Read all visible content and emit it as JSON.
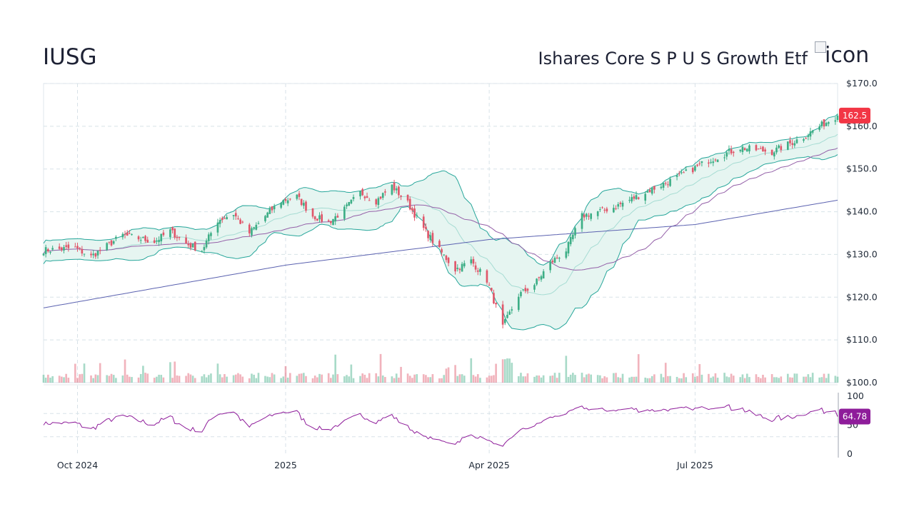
{
  "header": {
    "ticker": "IUSG",
    "name": "Ishares Core S P U S Growth Etf",
    "logo_alt": "icon"
  },
  "colors": {
    "up": "#3dae86",
    "down": "#e0566a",
    "band_fill": "#e6f5f1",
    "band_line": "#26a69a",
    "ma_mid": "#a6dcd3",
    "ma50": "#9460a8",
    "ma200": "#5b62b0",
    "rsi": "#8e1c9a",
    "price_badge": "#f23645",
    "rsi_badge": "#8e1c9a"
  },
  "chart_data": [
    {
      "type": "candlestick",
      "title": "",
      "x_range": [
        "2024-09-16",
        "2025-09-02"
      ],
      "x_tick_labels": [
        "Oct 2024",
        "2025",
        "Apr 2025",
        "Jul 2025"
      ],
      "y_tick_labels": [
        "$170.0",
        "$160.0",
        "$150.0",
        "$140.0",
        "$130.0",
        "$120.0",
        "$110.0",
        "$100.0"
      ],
      "ylim": [
        100,
        170
      ],
      "grid": true,
      "last_price": "162.5",
      "overlays": [
        "Bollinger Bands (20)",
        "MA 50",
        "MA 200"
      ],
      "close_keypoints": [
        {
          "date": "2024-09-16",
          "close": 131.0
        },
        {
          "date": "2024-09-30",
          "close": 131.5
        },
        {
          "date": "2024-10-07",
          "close": 129.5
        },
        {
          "date": "2024-10-21",
          "close": 134.5
        },
        {
          "date": "2024-11-04",
          "close": 133.0
        },
        {
          "date": "2024-11-11",
          "close": 135.5
        },
        {
          "date": "2024-11-18",
          "close": 132.5
        },
        {
          "date": "2024-11-25",
          "close": 131.0
        },
        {
          "date": "2024-12-02",
          "close": 138.0
        },
        {
          "date": "2024-12-09",
          "close": 139.5
        },
        {
          "date": "2024-12-16",
          "close": 135.0
        },
        {
          "date": "2024-12-23",
          "close": 139.0
        },
        {
          "date": "2024-12-30",
          "close": 142.5
        },
        {
          "date": "2025-01-06",
          "close": 143.5
        },
        {
          "date": "2025-01-13",
          "close": 139.0
        },
        {
          "date": "2025-01-20",
          "close": 137.5
        },
        {
          "date": "2025-01-27",
          "close": 140.5
        },
        {
          "date": "2025-02-03",
          "close": 144.5
        },
        {
          "date": "2025-02-10",
          "close": 142.5
        },
        {
          "date": "2025-02-17",
          "close": 146.0
        },
        {
          "date": "2025-02-24",
          "close": 142.0
        },
        {
          "date": "2025-03-03",
          "close": 136.0
        },
        {
          "date": "2025-03-10",
          "close": 131.0
        },
        {
          "date": "2025-03-17",
          "close": 126.5
        },
        {
          "date": "2025-03-24",
          "close": 128.5
        },
        {
          "date": "2025-03-31",
          "close": 124.0
        },
        {
          "date": "2025-04-07",
          "close": 113.0
        },
        {
          "date": "2025-04-14",
          "close": 120.5
        },
        {
          "date": "2025-04-21",
          "close": 123.0
        },
        {
          "date": "2025-04-28",
          "close": 128.0
        },
        {
          "date": "2025-05-05",
          "close": 131.0
        },
        {
          "date": "2025-05-12",
          "close": 139.0
        },
        {
          "date": "2025-05-26",
          "close": 141.0
        },
        {
          "date": "2025-06-09",
          "close": 144.5
        },
        {
          "date": "2025-06-23",
          "close": 148.0
        },
        {
          "date": "2025-07-07",
          "close": 152.0
        },
        {
          "date": "2025-07-21",
          "close": 155.0
        },
        {
          "date": "2025-08-04",
          "close": 154.0
        },
        {
          "date": "2025-08-18",
          "close": 157.5
        },
        {
          "date": "2025-08-25",
          "close": 160.0
        },
        {
          "date": "2025-09-02",
          "close": 162.5
        }
      ],
      "ma200_keypoints": [
        {
          "date": "2024-09-16",
          "value": 117.5
        },
        {
          "date": "2025-01-01",
          "value": 127.5
        },
        {
          "date": "2025-04-01",
          "value": 133.5
        },
        {
          "date": "2025-07-01",
          "value": 137.0
        },
        {
          "date": "2025-09-02",
          "value": 142.7
        }
      ],
      "volume": "relative bars at the foot of the price panel (green = up day, red = down day)"
    },
    {
      "type": "line",
      "series": [
        {
          "name": "RSI",
          "last_value": "64.78"
        }
      ],
      "y_tick_labels": [
        "100",
        "50",
        "0"
      ],
      "ylim": [
        0,
        100
      ],
      "reference_lines": [
        70,
        30
      ]
    }
  ]
}
